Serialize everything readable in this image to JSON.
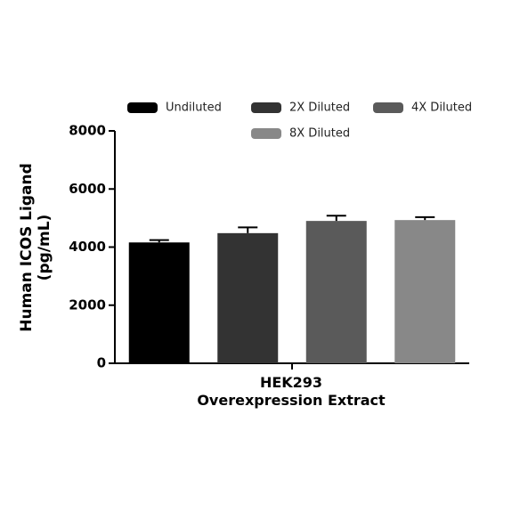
{
  "chart_data": {
    "type": "bar",
    "categories": [
      "HEK293\nOverexpression Extract"
    ],
    "y_label": "Human ICOS Ligand\n(pg/mL)",
    "series": [
      {
        "name": "Undiluted",
        "color": "#000000",
        "values": [
          4160
        ],
        "errors": [
          80
        ]
      },
      {
        "name": "2X Diluted",
        "color": "#333333",
        "values": [
          4480
        ],
        "errors": [
          200
        ]
      },
      {
        "name": "4X Diluted",
        "color": "#5a5a5a",
        "values": [
          4900
        ],
        "errors": [
          180
        ]
      },
      {
        "name": "8X Diluted",
        "color": "#888888",
        "values": [
          4930
        ],
        "errors": [
          100
        ]
      }
    ],
    "ylim": [
      0,
      8000
    ],
    "yticks": [
      0,
      2000,
      4000,
      6000,
      8000
    ],
    "grid": false
  }
}
